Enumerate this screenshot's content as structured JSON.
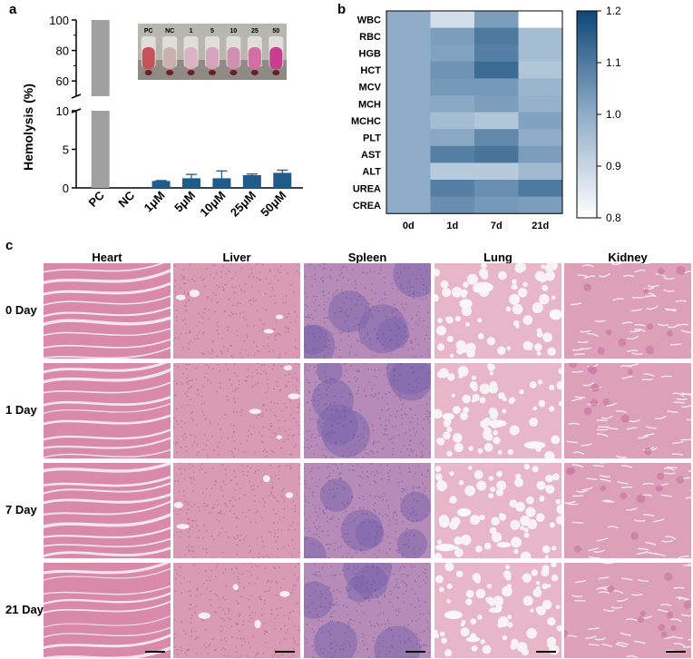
{
  "panel_labels": {
    "a": "a",
    "b": "b",
    "c": "c"
  },
  "colors": {
    "bar_main": "#1f5c8a",
    "bar_pc": "#a0a0a0",
    "heat_low": "#ffffff",
    "heat_high": "#0f4777",
    "he_pink": "#d68aa9",
    "he_purple": "#7e68ad"
  },
  "chart_data": [
    {
      "type": "bar",
      "panel": "a",
      "ylabel": "Hemolysis (%)",
      "categories": [
        "PC",
        "NC",
        "1μM",
        "5μM",
        "10μM",
        "25μM",
        "50μM"
      ],
      "values": [
        100,
        0,
        0.9,
        1.25,
        1.25,
        1.65,
        1.95
      ],
      "errors": [
        0,
        0,
        0.05,
        0.5,
        0.95,
        0.15,
        0.35
      ],
      "broken_axis": {
        "lower": [
          0,
          10
        ],
        "upper": [
          50,
          100
        ]
      },
      "yticks_lower": [
        "0",
        "5",
        "10"
      ],
      "yticks_upper": [
        "60",
        "80",
        "100"
      ],
      "inset_labels": [
        "PC",
        "NC",
        "1",
        "5",
        "10",
        "25",
        "50"
      ],
      "inset_tube_colors": [
        "#c7535a",
        "#c9b1ad",
        "#d9b4c3",
        "#d4a4bb",
        "#cf91b0",
        "#d36fa2",
        "#c93d8f"
      ]
    },
    {
      "type": "heatmap",
      "panel": "b",
      "x": [
        "0d",
        "1d",
        "7d",
        "21d"
      ],
      "y": [
        "WBC",
        "RBC",
        "HGB",
        "HCT",
        "MCV",
        "MCH",
        "MCHC",
        "PLT",
        "AST",
        "ALT",
        "UREA",
        "CREA"
      ],
      "values": [
        [
          1.0,
          0.88,
          1.03,
          0.8
        ],
        [
          1.0,
          1.03,
          1.1,
          0.96
        ],
        [
          1.0,
          1.02,
          1.09,
          0.96
        ],
        [
          1.0,
          1.05,
          1.13,
          0.94
        ],
        [
          1.0,
          1.04,
          1.04,
          0.98
        ],
        [
          1.0,
          1.01,
          1.03,
          0.99
        ],
        [
          1.0,
          0.96,
          0.94,
          1.02
        ],
        [
          1.0,
          1.01,
          1.07,
          1.0
        ],
        [
          1.0,
          1.09,
          1.11,
          1.03
        ],
        [
          1.0,
          0.93,
          0.93,
          0.97
        ],
        [
          1.0,
          1.09,
          1.06,
          1.1
        ],
        [
          1.0,
          1.06,
          1.04,
          1.03
        ]
      ],
      "colorbar": {
        "min": 0.8,
        "max": 1.2,
        "ticks": [
          "1.2",
          "1.1",
          "1.0",
          "0.9",
          "0.8"
        ]
      }
    }
  ],
  "histology": {
    "organs": [
      "Heart",
      "Liver",
      "Spleen",
      "Lung",
      "Kidney"
    ],
    "timepoints": [
      "0 Day",
      "1 Day",
      "7 Day",
      "21 Day"
    ]
  }
}
